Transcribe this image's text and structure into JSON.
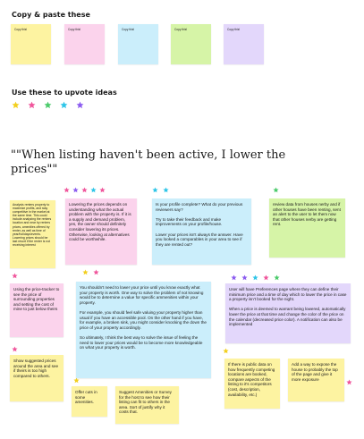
{
  "copy_title": "Copy & paste these",
  "swatch_label": "Copy this!",
  "upvote_title": "Use these to upvote ideas",
  "heading": "\"\"When listing haven't been active, I lower the prices\"\"",
  "colors": {
    "yellow": "#fdf3a1",
    "pink": "#fbd3ec",
    "blue": "#cbeefb",
    "green": "#d6f4a7",
    "purple": "#e3d7fb",
    "star_pink": "#f0569c",
    "star_blue": "#2ec5e8",
    "star_green": "#4ccb6c",
    "star_purple": "#8c5cf0",
    "star_yellow": "#f2cf1e"
  },
  "notes": {
    "analysis": "Analysis renters property to maximize profits, and stay competitive in the market at the same time. This could include analyzing the renters location and near by renters prices, amenities offered by renter, as well as time of year/holidays/events. Lowering prices should be last resort if the renter is not receiving interest",
    "lowering": "Lowering the prices  depends on understanding what the actual problem with the property is. If it is a supply and demand problem, yes, the owner should definitely consider lowering its prices. Otherwise, looking at alternatives could be worthwhile.",
    "profile": "Is your profile complete? What do your previous reviewers say?\n\nTry to take their feedback and make improvements on your profile/house.\n\nLower your prices isn't always the answer. Have you looked a comparables in your area to see if they are rented out?",
    "review": "review data from houses nerby and if other houses have been renting, sent an alert to the user to let them now that other houses nerby are getting rent.",
    "tracker": "Using the price-tracker to see the price of surrounding properties and setting the cost of mine to just below theirs",
    "should_not": "You shouldn't need to lower your price until you know exactly what your property is worth. One way to solve the problem of not knowing would be to determine a value for specific ammenities within your property.\n\nFor example, you should feel safe valuing your property higher than usual if you have an accessible pool. On the other hand if you have, for example, a broken sink, you might consider knocking the down the price of your property accordingly.\n\nSo ultimately, I think the best way to solve the issue of feeling the need to lower your prices would be to become more knowledgeable on what your property is worth.",
    "preferences": "User will have Preferences page where they can define their minimum price and a time of day which to lower the price in case a property isn't booked for the night.\n\nWhen a price is deemed to warrant being lowered, automatically lower the price at that time and change the color of the price on the calendar (decreased price color). A notification can also be implemented",
    "suggested": "Show suggested prices around the area and see if theirs is too high compared to others.",
    "cuts": "Offer cuts in some amenities.",
    "suggest_amenities": "Suggest Amenities  or  Survey for the host to see how their listing can fit to others in the area. Sort of justify why it costs that.",
    "public_data": "If there is public data on how frequently competing locations are booked, compare aspects of the listing to it's competitors (cost, description, availability, etc.)",
    "expose": "Add a way to  expose the house to probably the top of the page and give it more exposure"
  }
}
